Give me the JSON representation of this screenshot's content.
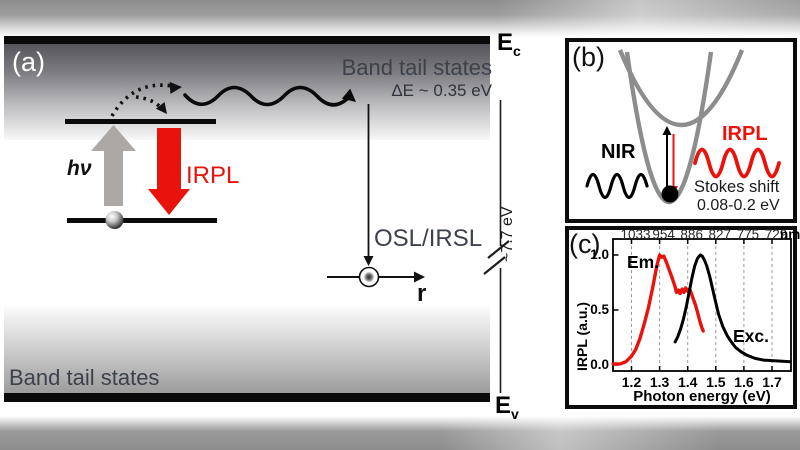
{
  "colors": {
    "red": "#e8130c",
    "arrow_gray": "#aba8a6",
    "parabola_gray": "#8d8d8d",
    "slate_text": "#3d414b"
  },
  "panel_a": {
    "label": "(a)",
    "band_top_title": "Band tail states",
    "delta_e": "ΔE ~ 0.35 eV",
    "band_bottom_title": "Band tail states",
    "ec_main": "E",
    "ec_sub": "c",
    "ev_main": "E",
    "ev_sub": "v",
    "hv": "hν",
    "irpl": "IRPL",
    "osl": "OSL/IRSL",
    "r": "r",
    "gap": "~7.7 eV"
  },
  "panel_b": {
    "label": "(b)",
    "nir": "NIR",
    "irpl": "IRPL",
    "stokes_line1": "Stokes shift",
    "stokes_line2": "0.08-0.2 eV"
  },
  "panel_c": {
    "label": "(c)",
    "em": "Em.",
    "exc": "Exc.",
    "ylabel": "IRPL (a.u.)",
    "xlabel": "Photon energy (eV)",
    "nm_unit": "nm"
  },
  "chart_data": {
    "type": "line",
    "title": "",
    "xlabel": "Photon energy (eV)",
    "ylabel": "IRPL (a.u.)",
    "xlim": [
      1.13,
      1.77
    ],
    "ylim": [
      0,
      1.15
    ],
    "grid": "vertical-dashed",
    "x_ticks": [
      {
        "ev": 1.2,
        "label": "1.2",
        "nm": "1033"
      },
      {
        "ev": 1.3,
        "label": "1.3",
        "nm": "954"
      },
      {
        "ev": 1.4,
        "label": "1.4",
        "nm": "886"
      },
      {
        "ev": 1.5,
        "label": "1.5",
        "nm": "827"
      },
      {
        "ev": 1.6,
        "label": "1.6",
        "nm": "775"
      },
      {
        "ev": 1.7,
        "label": "1.7",
        "nm": "729"
      }
    ],
    "y_ticks": [
      {
        "v": 0.0,
        "label": "0.0"
      },
      {
        "v": 0.5,
        "label": "0.5"
      },
      {
        "v": 1.0,
        "label": "1.0"
      }
    ],
    "series": [
      {
        "name": "Em.",
        "color": "#e8130c",
        "x": [
          1.135,
          1.16,
          1.18,
          1.2,
          1.215,
          1.23,
          1.245,
          1.26,
          1.275,
          1.29,
          1.3,
          1.307,
          1.315,
          1.325,
          1.335,
          1.345,
          1.355,
          1.36,
          1.367,
          1.373,
          1.38,
          1.387,
          1.393,
          1.4,
          1.407,
          1.413,
          1.42,
          1.427,
          1.435,
          1.443,
          1.45,
          1.455
        ],
        "y": [
          0.01,
          0.01,
          0.03,
          0.08,
          0.14,
          0.24,
          0.37,
          0.52,
          0.7,
          0.9,
          1.0,
          0.98,
          0.99,
          0.93,
          0.86,
          0.79,
          0.71,
          0.66,
          0.68,
          0.65,
          0.69,
          0.66,
          0.7,
          0.67,
          0.69,
          0.65,
          0.6,
          0.55,
          0.48,
          0.4,
          0.34,
          0.31
        ]
      },
      {
        "name": "Exc.",
        "color": "#000000",
        "x": [
          1.355,
          1.365,
          1.375,
          1.385,
          1.395,
          1.405,
          1.415,
          1.425,
          1.435,
          1.445,
          1.452,
          1.46,
          1.468,
          1.478,
          1.488,
          1.498,
          1.51,
          1.525,
          1.54,
          1.555,
          1.57,
          1.59,
          1.61,
          1.64,
          1.67,
          1.7,
          1.73,
          1.765
        ],
        "y": [
          0.21,
          0.26,
          0.33,
          0.42,
          0.53,
          0.66,
          0.79,
          0.9,
          0.97,
          1.0,
          0.99,
          0.95,
          0.9,
          0.81,
          0.7,
          0.59,
          0.46,
          0.35,
          0.27,
          0.21,
          0.16,
          0.12,
          0.09,
          0.06,
          0.045,
          0.04,
          0.035,
          0.03
        ]
      }
    ]
  }
}
